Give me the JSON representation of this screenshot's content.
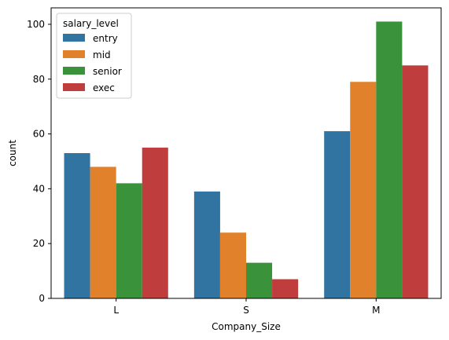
{
  "chart_data": {
    "type": "bar",
    "categories": [
      "L",
      "S",
      "M"
    ],
    "series": [
      {
        "name": "entry",
        "values": [
          53,
          39,
          61
        ],
        "color": "#3274a1"
      },
      {
        "name": "mid",
        "values": [
          48,
          24,
          79
        ],
        "color": "#e1812c"
      },
      {
        "name": "senior",
        "values": [
          42,
          13,
          101
        ],
        "color": "#3a923a"
      },
      {
        "name": "exec",
        "values": [
          55,
          7,
          85
        ],
        "color": "#c03d3e"
      }
    ],
    "xlabel": "Company_Size",
    "ylabel": "count",
    "ylim": [
      0,
      106
    ],
    "yticks": [
      0,
      20,
      40,
      60,
      80,
      100
    ],
    "grid": false,
    "legend": {
      "title": "salary_level",
      "position": "top-left"
    }
  }
}
